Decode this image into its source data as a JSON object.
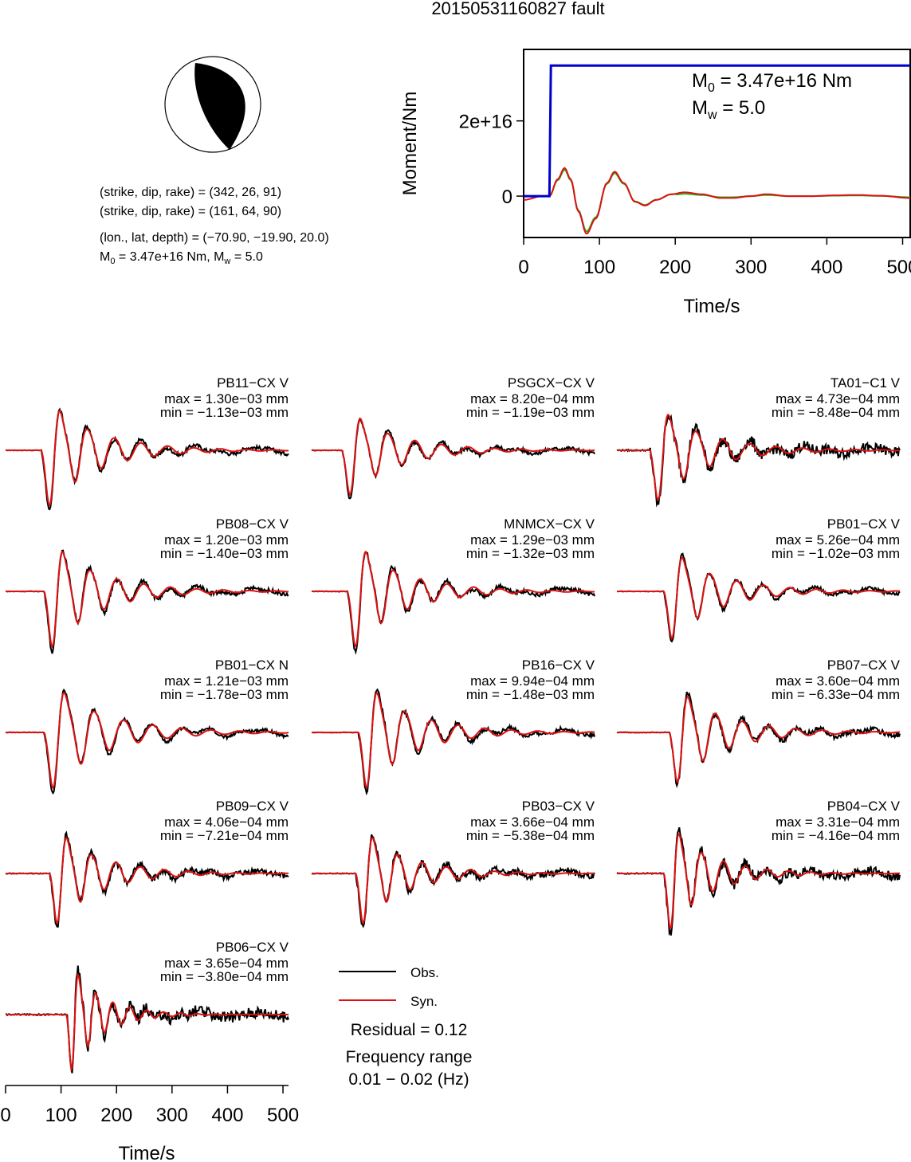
{
  "title": "20150531160827 fault",
  "colors": {
    "obs": "#000000",
    "syn": "#dd1111",
    "stf": "#0000cc",
    "moment_green": "#22bb22"
  },
  "mechanism": {
    "plane1": "(strike, dip, rake) = (342, 26, 91)",
    "plane2": "(strike, dip, rake) = (161, 64, 90)",
    "location": "(lon., lat, depth) = (−70.90, −19.90, 20.0)",
    "m0_prefix": "M",
    "m0_sub": "0",
    "m0_value": " = 3.47e+16 Nm, M",
    "mw_sub": "w",
    "mw_value": " = 5.0"
  },
  "moment_panel": {
    "m0_label": "M",
    "m0_sub": "0",
    "m0_text": " = 3.47e+16 Nm",
    "mw_label": "M",
    "mw_sub": "w",
    "mw_text": " = 5.0"
  },
  "chart_data": [
    {
      "type": "line",
      "name": "moment-rate",
      "xlabel": "Time/s",
      "ylabel": "Moment/Nm",
      "xlim": [
        0,
        510
      ],
      "ylim": [
        -1.1e+16,
        3.9e+16
      ],
      "xticks": [
        0,
        100,
        200,
        300,
        400,
        500
      ],
      "yticks": [
        {
          "value": 0,
          "label": "0"
        },
        {
          "value": 2e+16,
          "label": "2e+16"
        }
      ],
      "cumulative_moment": {
        "x": [
          0,
          34,
          36,
          510
        ],
        "y": [
          0,
          0,
          3.47e+16,
          3.47e+16
        ]
      },
      "waveform_peaks": {
        "x": [
          0,
          25,
          34,
          45,
          54,
          62,
          72,
          83,
          95,
          110,
          120,
          132,
          147,
          160,
          175,
          195,
          212,
          235,
          260,
          275,
          300,
          320,
          350,
          380,
          410,
          440,
          470,
          510
        ],
        "y": [
          -1000000000000000.0,
          0,
          0,
          4500000000000000.0,
          7500000000000000.0,
          4500000000000000.0,
          -4000000000000000.0,
          -1e+16,
          -6000000000000000.0,
          3500000000000000.0,
          6500000000000000.0,
          3500000000000000.0,
          -1500000000000000.0,
          -2500000000000000.0,
          -1000000000000000.0,
          500000000000000.0,
          1000000000000000.0,
          500000000000000.0,
          -500000000000000.0,
          -500000000000000.0,
          0,
          500000000000000.0,
          0,
          0,
          200000000000000.0,
          300000000000000.0,
          100000000000000.0,
          -500000000000000.0
        ]
      }
    },
    {
      "type": "line",
      "name": "waveform-fits",
      "xlabel": "Time/s",
      "xlim": [
        0,
        510
      ],
      "xticks": [
        0,
        100,
        200,
        300,
        400,
        500
      ],
      "legend": {
        "obs": "Obs.",
        "syn": "Syn."
      },
      "residual": "Residual = 0.12",
      "freq_title": "Frequency range",
      "freq_range": "0.01 − 0.02 (Hz)",
      "stations": [
        {
          "name": "PB11−CX V",
          "max": "max = 1.30e−03 mm",
          "min": "min = −1.13e−03 mm",
          "onset": 65,
          "period": 55,
          "amp": 1.0,
          "noise": 0.05
        },
        {
          "name": "PSGCX−CX V",
          "max": "max = 8.20e−04 mm",
          "min": "min = −1.19e−03 mm",
          "onset": 55,
          "period": 55,
          "amp": 0.8,
          "noise": 0.06
        },
        {
          "name": "TA01−C1 V",
          "max": "max = 4.73e−04 mm",
          "min": "min = −8.48e−04 mm",
          "onset": 60,
          "period": 55,
          "amp": 0.9,
          "noise": 0.15
        },
        {
          "name": "PB08−CX V",
          "max": "max = 1.20e−03 mm",
          "min": "min = −1.40e−03 mm",
          "onset": 70,
          "period": 55,
          "amp": 1.0,
          "noise": 0.05
        },
        {
          "name": "MNMCX−CX V",
          "max": "max = 1.29e−03 mm",
          "min": "min = −1.32e−03 mm",
          "onset": 65,
          "period": 55,
          "amp": 1.0,
          "noise": 0.05
        },
        {
          "name": "PB01−CX V",
          "max": "max = 5.26e−04 mm",
          "min": "min = −1.02e−03 mm",
          "onset": 85,
          "period": 55,
          "amp": 0.85,
          "noise": 0.05
        },
        {
          "name": "PB01−CX N",
          "max": "max = 1.21e−03 mm",
          "min": "min = −1.78e−03 mm",
          "onset": 70,
          "period": 60,
          "amp": 1.0,
          "noise": 0.04
        },
        {
          "name": "PB16−CX V",
          "max": "max = 9.94e−04 mm",
          "min": "min = −1.48e−03 mm",
          "onset": 85,
          "period": 55,
          "amp": 1.0,
          "noise": 0.05
        },
        {
          "name": "PB07−CX V",
          "max": "max = 3.60e−04 mm",
          "min": "min = −6.33e−04 mm",
          "onset": 95,
          "period": 55,
          "amp": 0.9,
          "noise": 0.07
        },
        {
          "name": "PB09−CX V",
          "max": "max = 4.06e−04 mm",
          "min": "min = −7.21e−04 mm",
          "onset": 80,
          "period": 50,
          "amp": 0.9,
          "noise": 0.08
        },
        {
          "name": "PB03−CX V",
          "max": "max = 3.66e−04 mm",
          "min": "min = −5.38e−04 mm",
          "onset": 80,
          "period": 50,
          "amp": 0.9,
          "noise": 0.09
        },
        {
          "name": "PB04−CX V",
          "max": "max = 3.31e−04 mm",
          "min": "min = −4.16e−04 mm",
          "onset": 85,
          "period": 45,
          "amp": 1.0,
          "noise": 0.12
        },
        {
          "name": "PB06−CX V",
          "max": "max = 3.65e−04 mm",
          "min": "min = −3.80e−04 mm",
          "onset": 110,
          "period": 35,
          "amp": 1.0,
          "noise": 0.15
        }
      ]
    }
  ]
}
